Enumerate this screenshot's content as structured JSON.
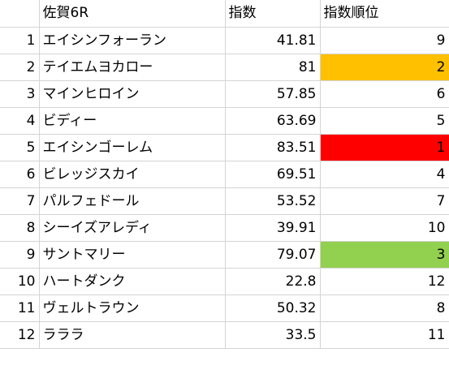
{
  "header": {
    "index": "",
    "name": "佐賀6R",
    "score": "指数",
    "rank": "指数順位"
  },
  "rows": [
    {
      "index": "1",
      "name": "エイシンフォーラン",
      "score": "41.81",
      "rank": "9",
      "rank_color": ""
    },
    {
      "index": "2",
      "name": "テイエムヨカロー",
      "score": "81",
      "rank": "2",
      "rank_color": "#ffc000"
    },
    {
      "index": "3",
      "name": "マインヒロイン",
      "score": "57.85",
      "rank": "6",
      "rank_color": ""
    },
    {
      "index": "4",
      "name": "ビディー",
      "score": "63.69",
      "rank": "5",
      "rank_color": ""
    },
    {
      "index": "5",
      "name": "エイシンゴーレム",
      "score": "83.51",
      "rank": "1",
      "rank_color": "#ff0000"
    },
    {
      "index": "6",
      "name": "ビレッジスカイ",
      "score": "69.51",
      "rank": "4",
      "rank_color": ""
    },
    {
      "index": "7",
      "name": "パルフェドール",
      "score": "53.52",
      "rank": "7",
      "rank_color": ""
    },
    {
      "index": "8",
      "name": "シーイズアレディ",
      "score": "39.91",
      "rank": "10",
      "rank_color": ""
    },
    {
      "index": "9",
      "name": "サントマリー",
      "score": "79.07",
      "rank": "3",
      "rank_color": "#92d050"
    },
    {
      "index": "10",
      "name": "ハートダンク",
      "score": "22.8",
      "rank": "12",
      "rank_color": ""
    },
    {
      "index": "11",
      "name": "ヴェルトラウン",
      "score": "50.32",
      "rank": "8",
      "rank_color": ""
    },
    {
      "index": "12",
      "name": "ラララ",
      "score": "33.5",
      "rank": "11",
      "rank_color": ""
    }
  ]
}
